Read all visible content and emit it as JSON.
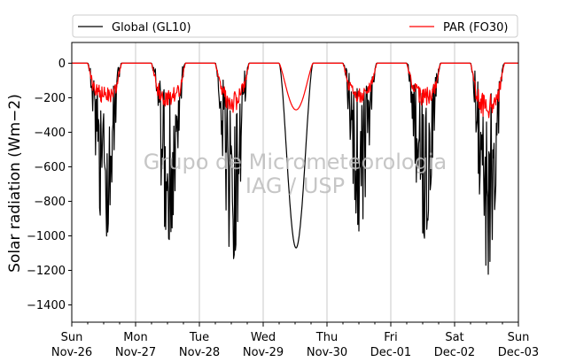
{
  "chart_data": {
    "type": "line",
    "ylabel": "Solar radiation (Wm−2)",
    "ylim": [
      -1500,
      120
    ],
    "yticks": [
      0,
      -200,
      -400,
      -600,
      -800,
      -1000,
      -1200,
      -1400
    ],
    "ytick_labels": [
      "0",
      "−200",
      "−400",
      "−600",
      "−800",
      "−1000",
      "−1200",
      "−1400"
    ],
    "xlim": [
      "2017-11-26",
      "2017-12-03"
    ],
    "x_ticks": [
      {
        "day": "Sun",
        "date": "Nov-26"
      },
      {
        "day": "Mon",
        "date": "Nov-27"
      },
      {
        "day": "Tue",
        "date": "Nov-28"
      },
      {
        "day": "Wed",
        "date": "Nov-29"
      },
      {
        "day": "Thu",
        "date": "Nov-30"
      },
      {
        "day": "Fri",
        "date": "Dec-01"
      },
      {
        "day": "Sat",
        "date": "Dec-02"
      },
      {
        "day": "Sun",
        "date": "Dec-03"
      }
    ],
    "grid": "vertical at day boundaries",
    "legend_position": "top, outside plot",
    "series": [
      {
        "name": "Global (GL10)",
        "color": "#000000",
        "daily_min": [
          -1050,
          -1060,
          -1170,
          -1070,
          -980,
          -1040,
          -1250
        ],
        "daily_character": [
          "cloudy",
          "cloudy",
          "cloudy",
          "clear",
          "cloudy",
          "cloudy",
          "cloudy"
        ]
      },
      {
        "name": "PAR (FO30)",
        "color": "#ff0000",
        "daily_min": [
          -250,
          -270,
          -290,
          -270,
          -230,
          -260,
          -330
        ],
        "daily_character": [
          "cloudy",
          "cloudy",
          "cloudy",
          "clear",
          "cloudy",
          "cloudy",
          "cloudy"
        ]
      }
    ],
    "watermark": [
      "Grupo de Micrometeorologia",
      "IAG / USP"
    ]
  }
}
